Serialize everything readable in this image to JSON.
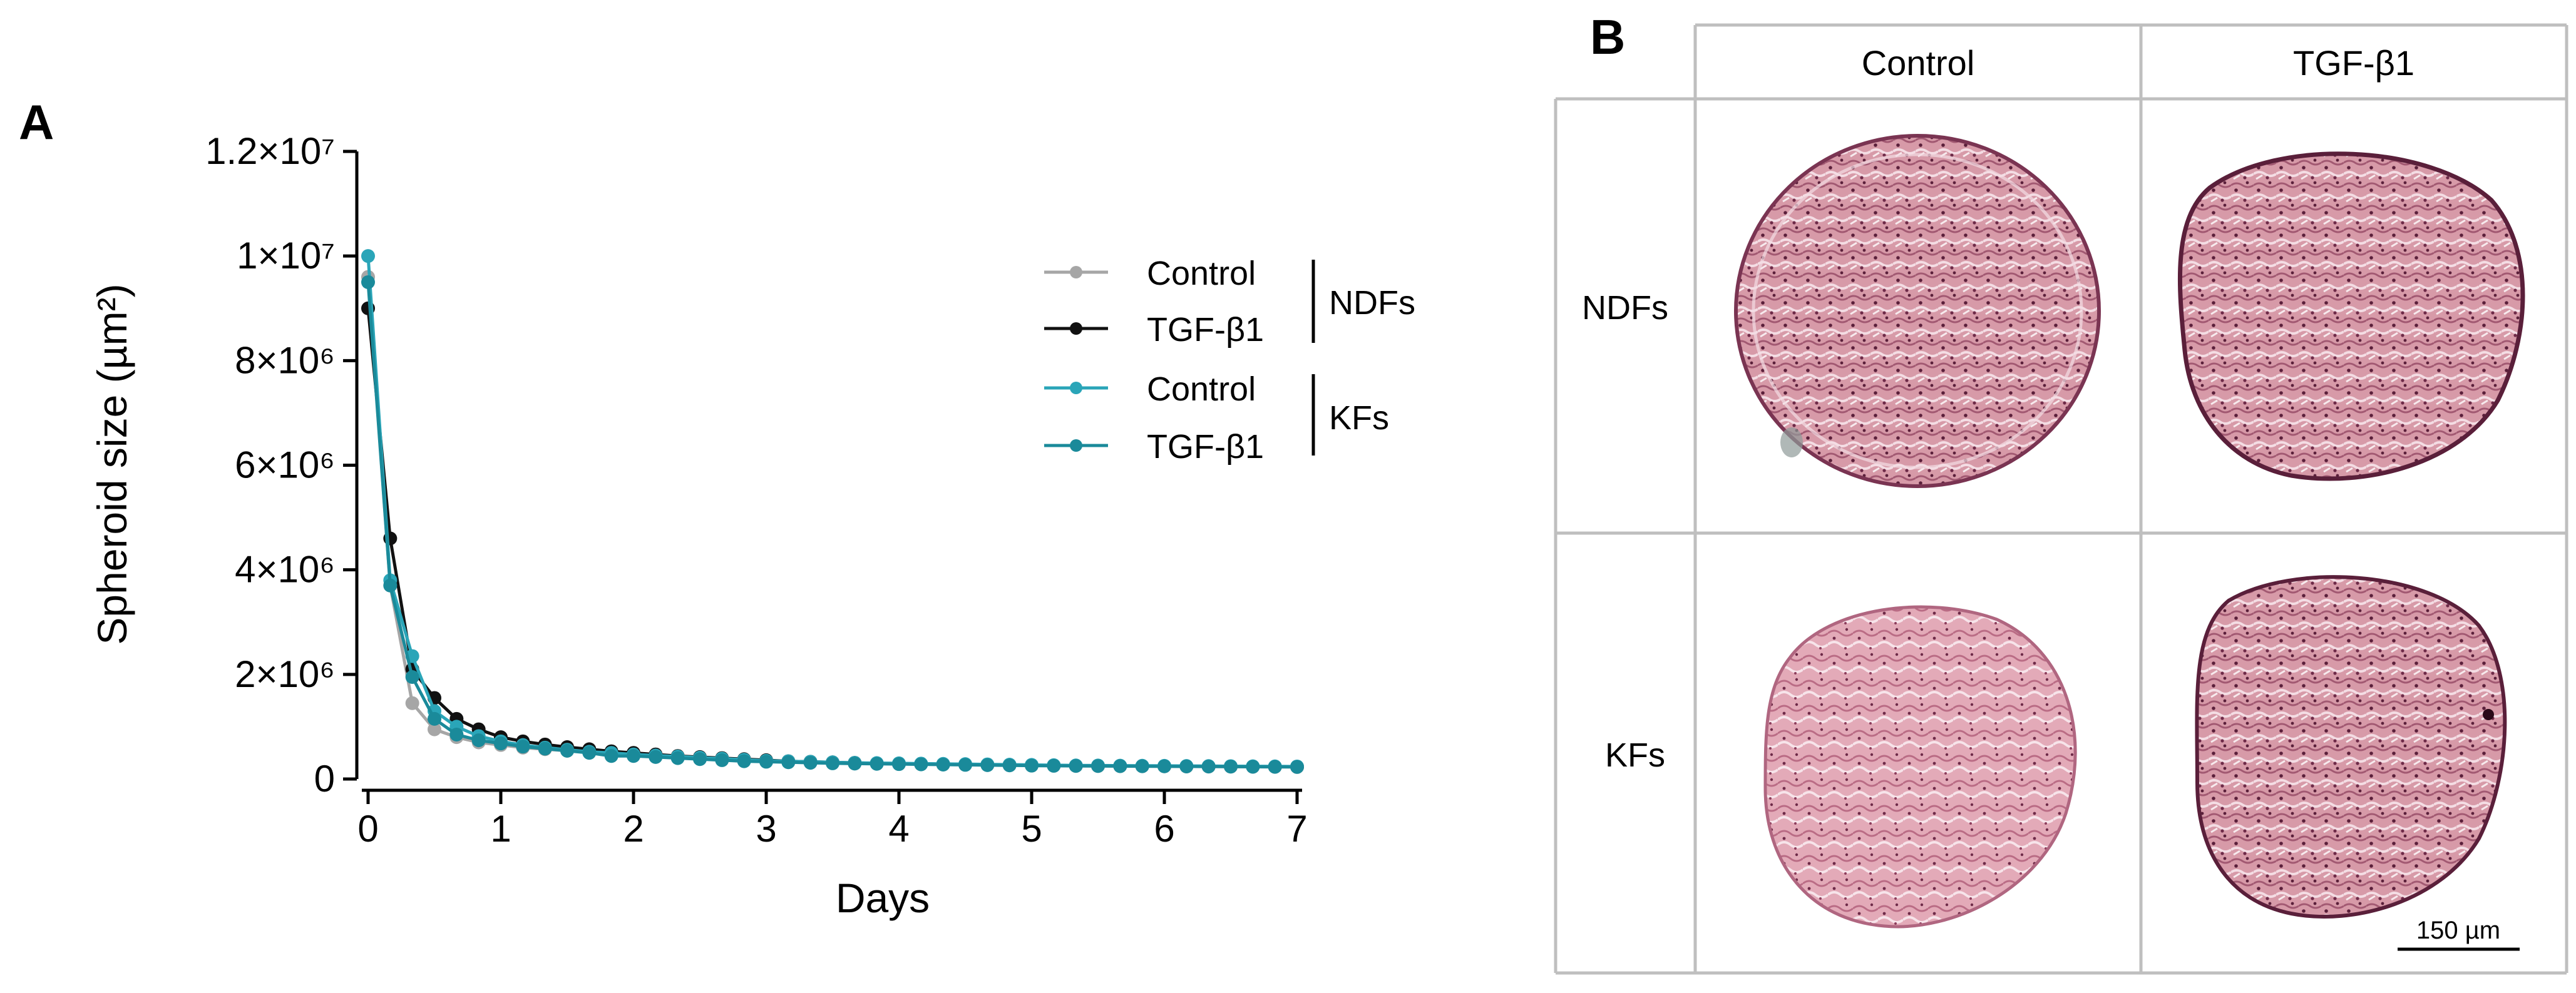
{
  "panel_a": {
    "label": "A"
  },
  "panel_b": {
    "label": "B",
    "column_headers": [
      "Control",
      "TGF-β1"
    ],
    "row_headers": [
      "NDFs",
      "KFs"
    ],
    "scale_bar_label": "150 µm"
  },
  "colors": {
    "ndf_control": "#a6a6a6",
    "ndf_tgf": "#111111",
    "kf_control": "#2aa5b8",
    "kf_tgf": "#1a8a9a",
    "grid_border": "#bfbfbf",
    "stain_fill": "#d79aa8",
    "stain_dark": "#6e2a48",
    "stain_light": "#f4dde4"
  },
  "chart_data": {
    "type": "line",
    "title": "",
    "xlabel": "Days",
    "ylabel": "Spheroid size (µm²)",
    "xlim": [
      0,
      7
    ],
    "ylim": [
      0,
      12000000
    ],
    "x_ticks": [
      0,
      1,
      2,
      3,
      4,
      5,
      6,
      7
    ],
    "y_ticks": [
      {
        "value": 0,
        "label": "0"
      },
      {
        "value": 2000000,
        "label": "2×10⁶"
      },
      {
        "value": 4000000,
        "label": "4×10⁶"
      },
      {
        "value": 6000000,
        "label": "6×10⁶"
      },
      {
        "value": 8000000,
        "label": "8×10⁶"
      },
      {
        "value": 10000000,
        "label": "1×10⁷"
      },
      {
        "value": 12000000,
        "label": "1.2×10⁷"
      }
    ],
    "legend": {
      "position": "top-right",
      "groups": [
        {
          "name": "NDFs",
          "entries": [
            {
              "label": "Control",
              "color": "#a6a6a6"
            },
            {
              "label": "TGF-β1",
              "color": "#111111"
            }
          ]
        },
        {
          "name": "KFs",
          "entries": [
            {
              "label": "Control",
              "color": "#2aa5b8"
            },
            {
              "label": "TGF-β1",
              "color": "#1a8a9a"
            }
          ]
        }
      ]
    },
    "x": [
      0,
      0.1667,
      0.3333,
      0.5,
      0.6667,
      0.8333,
      1,
      1.1667,
      1.3333,
      1.5,
      1.6667,
      1.8333,
      2,
      2.1667,
      2.3333,
      2.5,
      2.6667,
      2.8333,
      3,
      3.1667,
      3.3333,
      3.5,
      3.6667,
      3.8333,
      4,
      4.1667,
      4.3333,
      4.5,
      4.6667,
      4.8333,
      5,
      5.1667,
      5.3333,
      5.5,
      5.6667,
      5.8333,
      6,
      6.1667,
      6.3333,
      6.5,
      6.6667,
      6.8333,
      7
    ],
    "series": [
      {
        "name": "Control (NDFs)",
        "color": "#a6a6a6",
        "values": [
          9600000,
          3700000,
          1450000,
          950000,
          800000,
          700000,
          650000,
          600000,
          570000,
          540000,
          510000,
          490000,
          460000,
          440000,
          420000,
          400000,
          380000,
          360000,
          340000,
          330000,
          320000,
          310000,
          300000,
          295000,
          290000,
          285000,
          280000,
          275000,
          270000,
          265000,
          260000,
          255000,
          250000,
          248000,
          246000,
          244000,
          242000,
          240000,
          238000,
          236000,
          234000,
          232000,
          230000
        ]
      },
      {
        "name": "TGF-β1 (NDFs)",
        "color": "#111111",
        "values": [
          9000000,
          4600000,
          2100000,
          1550000,
          1150000,
          950000,
          800000,
          720000,
          660000,
          610000,
          570000,
          530000,
          500000,
          470000,
          440000,
          420000,
          400000,
          380000,
          360000,
          340000,
          330000,
          320000,
          310000,
          300000,
          295000,
          290000,
          285000,
          280000,
          275000,
          270000,
          265000,
          260000,
          255000,
          252000,
          250000,
          248000,
          246000,
          244000,
          242000,
          240000,
          238000,
          236000,
          234000
        ]
      },
      {
        "name": "Control (KFs)",
        "color": "#2aa5b8",
        "values": [
          10000000,
          3800000,
          2350000,
          1300000,
          1000000,
          820000,
          720000,
          650000,
          600000,
          560000,
          520000,
          500000,
          470000,
          450000,
          430000,
          410000,
          390000,
          370000,
          350000,
          340000,
          330000,
          320000,
          310000,
          305000,
          300000,
          295000,
          290000,
          285000,
          280000,
          275000,
          270000,
          265000,
          260000,
          258000,
          256000,
          254000,
          252000,
          250000,
          248000,
          246000,
          244000,
          242000,
          240000
        ]
      },
      {
        "name": "TGF-β1 (KFs)",
        "color": "#1a8a9a",
        "values": [
          9500000,
          3700000,
          1950000,
          1150000,
          850000,
          740000,
          680000,
          620000,
          580000,
          540000,
          500000,
          440000,
          440000,
          420000,
          400000,
          380000,
          360000,
          340000,
          330000,
          320000,
          310000,
          300000,
          295000,
          290000,
          285000,
          280000,
          275000,
          270000,
          265000,
          260000,
          255000,
          252000,
          250000,
          248000,
          246000,
          244000,
          242000,
          240000,
          238000,
          236000,
          234000,
          232000,
          230000
        ]
      }
    ]
  }
}
